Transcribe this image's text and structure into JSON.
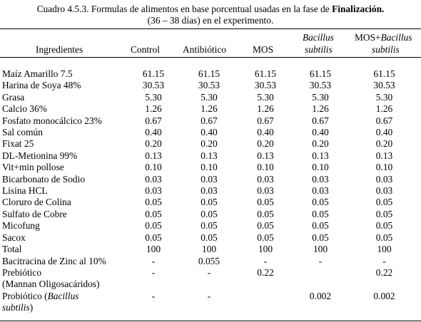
{
  "caption": {
    "line1_prefix": "Cuadro 4.5.3. Formulas de alimentos en base porcentual usadas en la fase de ",
    "line1_bold": "Finalización.",
    "line2": "(36 – 38 días) en el experimento."
  },
  "headers": {
    "ingredientes": "Ingredientes",
    "control": "Control",
    "antibiotico": "Antibiótico",
    "mos": "MOS",
    "bacillus_line1": "Bacillus",
    "bacillus_line2": "subtilis",
    "mos_bacillus_prefix": "MOS+",
    "mos_bacillus_italic1": "Bacillus",
    "mos_bacillus_line2": "subtilis"
  },
  "rows": [
    {
      "name": "Maíz Amarillo 7.5",
      "v": [
        "61.15",
        "61.15",
        "61.15",
        "61.15",
        "61.15"
      ]
    },
    {
      "name": "Harina de Soya 48%",
      "v": [
        "30.53",
        "30.53",
        "30.53",
        "30.53",
        "30.53"
      ]
    },
    {
      "name": "Grasa",
      "v": [
        "5.30",
        "5.30",
        "5.30",
        "5.30",
        "5.30"
      ]
    },
    {
      "name": "Calcio 36%",
      "v": [
        "1.26",
        "1.26",
        "1.26",
        "1.26",
        "1.26"
      ]
    },
    {
      "name": "Fosfato monocálcico 23%",
      "v": [
        "0.67",
        "0.67",
        "0.67",
        "0.67",
        "0.67"
      ]
    },
    {
      "name": "Sal común",
      "v": [
        "0.40",
        "0.40",
        "0.40",
        "0.40",
        "0.40"
      ]
    },
    {
      "name": "Fixat 25",
      "v": [
        "0.20",
        "0.20",
        "0.20",
        "0.20",
        "0.20"
      ]
    },
    {
      "name": "DL-Metionina 99%",
      "v": [
        "0.13",
        "0.13",
        "0.13",
        "0.13",
        "0.13"
      ]
    },
    {
      "name": "Vit+min pollose",
      "v": [
        "0.10",
        "0.10",
        "0.10",
        "0.10",
        "0.10"
      ]
    },
    {
      "name": "Bicarbonato de Sodio",
      "v": [
        "0.03",
        "0.03",
        "0.03",
        "0.03",
        "0.03"
      ]
    },
    {
      "name": "Lisina HCL",
      "v": [
        "0.03",
        "0.03",
        "0.03",
        "0.03",
        "0.03"
      ]
    },
    {
      "name": "Cloruro de Colina",
      "v": [
        "0.05",
        "0.05",
        "0.05",
        "0.05",
        "0.05"
      ]
    },
    {
      "name": "Sulfato de Cobre",
      "v": [
        "0.05",
        "0.05",
        "0.05",
        "0.05",
        "0.05"
      ]
    },
    {
      "name": "Micofung",
      "v": [
        "0.05",
        "0.05",
        "0.05",
        "0.05",
        "0.05"
      ]
    },
    {
      "name": "Sacox",
      "v": [
        "0.05",
        "0.05",
        "0.05",
        "0.05",
        "0.05"
      ]
    },
    {
      "name": "Total",
      "v": [
        "100",
        "100",
        "100",
        "100",
        "100"
      ]
    },
    {
      "name": "Bacitracina de Zinc al 10%",
      "v": [
        "-",
        "0.055",
        "-",
        "-",
        "-"
      ]
    }
  ],
  "prebiotico": {
    "line1": "Prebiótico",
    "line2": "(Mannan Oligosacáridos)",
    "v": [
      "-",
      "-",
      "0.22",
      "",
      "0.22"
    ]
  },
  "probiotico": {
    "line1_prefix": "Probiótico (",
    "line1_italic": "Bacillus",
    "line2_italic": "subtilis",
    "line2_suffix": ")",
    "v": [
      "-",
      "-",
      "",
      "0.002",
      "0.002"
    ]
  }
}
